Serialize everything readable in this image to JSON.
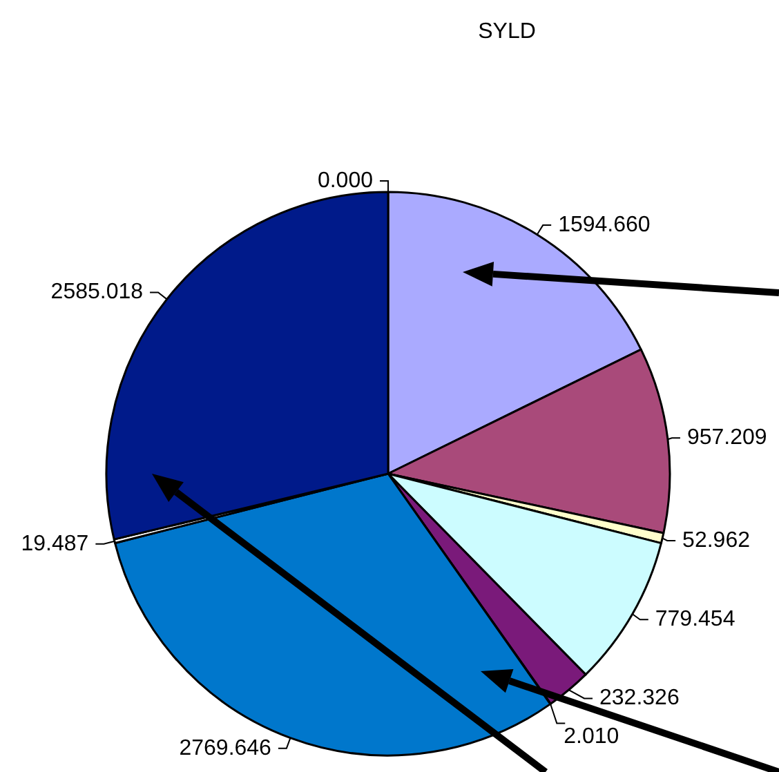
{
  "chart_data": {
    "type": "pie",
    "title": "SYLD",
    "categories": [
      null,
      null,
      null,
      null,
      null,
      null,
      null,
      null,
      null,
      null
    ],
    "values": [
      0.0,
      1594.66,
      957.209,
      52.962,
      779.454,
      232.326,
      2.01,
      2769.646,
      19.487,
      2585.018
    ],
    "value_labels": [
      "0.000",
      "1594.660",
      "957.209",
      "52.962",
      "779.454",
      "232.326",
      "2.010",
      "2769.646",
      "19.487",
      "2585.018"
    ],
    "colors": [
      "#ffffff",
      "#aaaaff",
      "#a94a7a",
      "#ffffcc",
      "#ccfcff",
      "#7a1a7a",
      "#3399ff",
      "#0077cc",
      "#ffffff",
      "#001a8a"
    ],
    "legend": false
  }
}
